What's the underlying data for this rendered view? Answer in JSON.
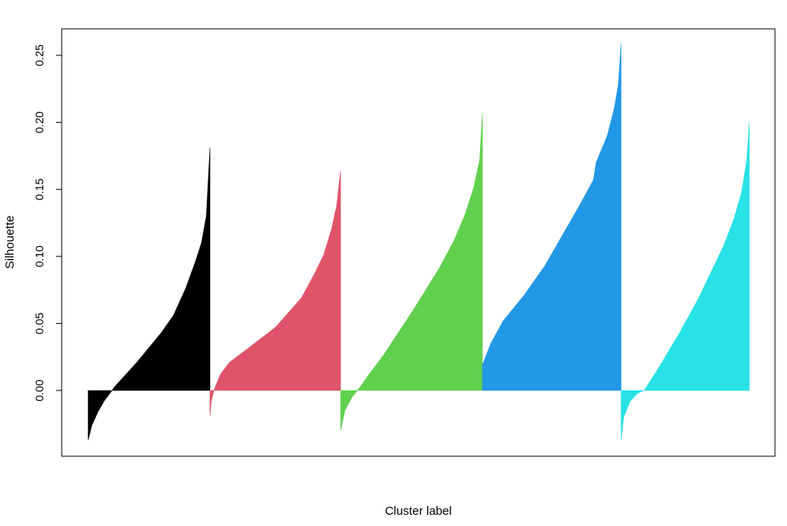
{
  "chart_data": {
    "type": "area",
    "title": "",
    "xlabel": "Cluster label",
    "ylabel": "Silhouette",
    "ylim": [
      -0.045,
      0.27
    ],
    "yticks": [
      0.0,
      0.05,
      0.1,
      0.15,
      0.2,
      0.25
    ],
    "ytick_labels": [
      "0.00",
      "0.05",
      "0.10",
      "0.15",
      "0.20",
      "0.25"
    ],
    "xticks": [],
    "grid": false,
    "legend": "none",
    "series": [
      {
        "color": "#000000",
        "min": -0.037,
        "max": 0.181,
        "profile": [
          [
            0,
            -0.037
          ],
          [
            0.03,
            -0.026
          ],
          [
            0.08,
            -0.016
          ],
          [
            0.13,
            -0.008
          ],
          [
            0.18,
            -0.002
          ],
          [
            0.22,
            0.003
          ],
          [
            0.3,
            0.011
          ],
          [
            0.4,
            0.021
          ],
          [
            0.5,
            0.032
          ],
          [
            0.6,
            0.043
          ],
          [
            0.7,
            0.056
          ],
          [
            0.8,
            0.076
          ],
          [
            0.88,
            0.096
          ],
          [
            0.93,
            0.11
          ],
          [
            0.97,
            0.13
          ],
          [
            1,
            0.181
          ]
        ]
      },
      {
        "color": "#df536b",
        "min": -0.019,
        "max": 0.164,
        "profile": [
          [
            0,
            -0.019
          ],
          [
            0.01,
            -0.008
          ],
          [
            0.03,
            0.0
          ],
          [
            0.08,
            0.012
          ],
          [
            0.15,
            0.021
          ],
          [
            0.3,
            0.032
          ],
          [
            0.5,
            0.047
          ],
          [
            0.6,
            0.058
          ],
          [
            0.7,
            0.069
          ],
          [
            0.8,
            0.087
          ],
          [
            0.87,
            0.101
          ],
          [
            0.93,
            0.12
          ],
          [
            0.97,
            0.138
          ],
          [
            1,
            0.164
          ]
        ]
      },
      {
        "color": "#61d04f",
        "min": -0.03,
        "max": 0.207,
        "profile": [
          [
            0,
            -0.03
          ],
          [
            0.03,
            -0.015
          ],
          [
            0.08,
            -0.005
          ],
          [
            0.12,
            0.0
          ],
          [
            0.2,
            0.012
          ],
          [
            0.3,
            0.026
          ],
          [
            0.4,
            0.042
          ],
          [
            0.5,
            0.058
          ],
          [
            0.6,
            0.075
          ],
          [
            0.7,
            0.092
          ],
          [
            0.8,
            0.112
          ],
          [
            0.88,
            0.132
          ],
          [
            0.94,
            0.152
          ],
          [
            0.98,
            0.172
          ],
          [
            1,
            0.207
          ]
        ]
      },
      {
        "color": "#2297e6",
        "min": 0.019,
        "max": 0.259,
        "profile": [
          [
            0,
            0.019
          ],
          [
            0.06,
            0.035
          ],
          [
            0.15,
            0.052
          ],
          [
            0.3,
            0.071
          ],
          [
            0.45,
            0.093
          ],
          [
            0.6,
            0.12
          ],
          [
            0.7,
            0.138
          ],
          [
            0.8,
            0.157
          ],
          [
            0.82,
            0.17
          ],
          [
            0.9,
            0.19
          ],
          [
            0.95,
            0.21
          ],
          [
            0.98,
            0.228
          ],
          [
            1,
            0.259
          ]
        ]
      },
      {
        "color": "#28e2e5",
        "min": -0.037,
        "max": 0.2,
        "profile": [
          [
            0,
            -0.037
          ],
          [
            0.02,
            -0.02
          ],
          [
            0.07,
            -0.008
          ],
          [
            0.13,
            -0.002
          ],
          [
            0.18,
            0.0
          ],
          [
            0.3,
            0.018
          ],
          [
            0.45,
            0.042
          ],
          [
            0.6,
            0.068
          ],
          [
            0.7,
            0.088
          ],
          [
            0.8,
            0.108
          ],
          [
            0.88,
            0.128
          ],
          [
            0.94,
            0.148
          ],
          [
            0.98,
            0.172
          ],
          [
            1,
            0.2
          ]
        ]
      }
    ]
  }
}
